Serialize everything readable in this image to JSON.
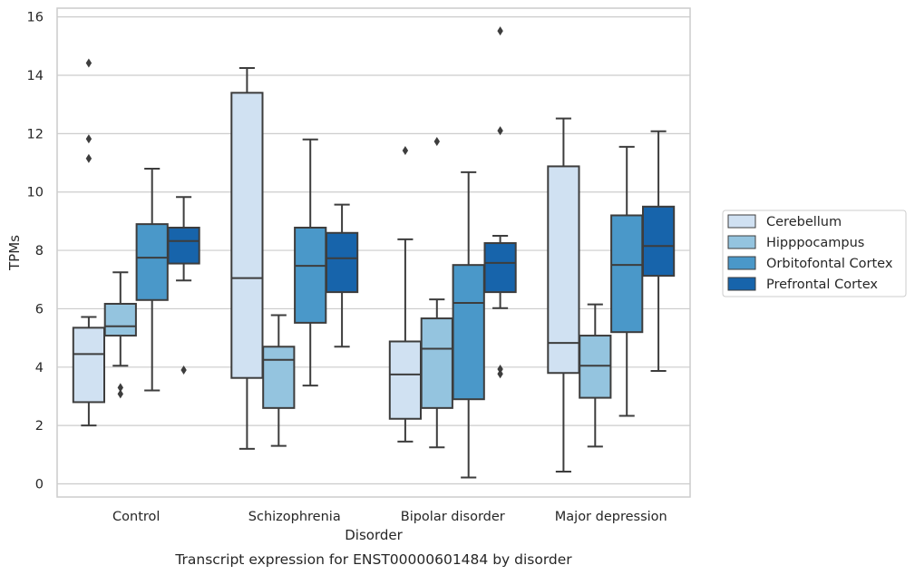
{
  "chart_data": {
    "type": "box",
    "caption": "Transcript expression for ENST00000601484 by disorder",
    "xlabel": "Disorder",
    "ylabel": "TPMs",
    "ylim": [
      -0.45,
      16.3
    ],
    "yticks": [
      0,
      2,
      4,
      6,
      8,
      10,
      12,
      14,
      16
    ],
    "grid": "horizontal",
    "legend_position": "right",
    "categories": [
      "Control",
      "Schizophrenia",
      "Bipolar disorder",
      "Major depression"
    ],
    "series": [
      {
        "name": "Cerebellum",
        "color": "#d0e1f2",
        "boxes": [
          {
            "whisker_low": 2.0,
            "q1": 2.8,
            "median": 4.45,
            "q3": 5.35,
            "whisker_high": 5.72,
            "outliers": [
              11.15,
              11.82,
              14.42
            ]
          },
          {
            "whisker_low": 1.2,
            "q1": 3.63,
            "median": 7.05,
            "q3": 13.4,
            "whisker_high": 14.25,
            "outliers": []
          },
          {
            "whisker_low": 1.45,
            "q1": 2.23,
            "median": 3.75,
            "q3": 4.88,
            "whisker_high": 8.38,
            "outliers": [
              11.42
            ]
          },
          {
            "whisker_low": 0.42,
            "q1": 3.8,
            "median": 4.83,
            "q3": 10.88,
            "whisker_high": 12.52,
            "outliers": []
          }
        ]
      },
      {
        "name": "Hipppocampus",
        "color": "#94c4df",
        "boxes": [
          {
            "whisker_low": 4.05,
            "q1": 5.08,
            "median": 5.4,
            "q3": 6.17,
            "whisker_high": 7.25,
            "outliers": [
              3.08,
              3.3
            ]
          },
          {
            "whisker_low": 1.3,
            "q1": 2.6,
            "median": 4.25,
            "q3": 4.7,
            "whisker_high": 5.78,
            "outliers": []
          },
          {
            "whisker_low": 1.25,
            "q1": 2.6,
            "median": 4.63,
            "q3": 5.67,
            "whisker_high": 6.32,
            "outliers": [
              11.73
            ]
          },
          {
            "whisker_low": 1.28,
            "q1": 2.95,
            "median": 4.05,
            "q3": 5.08,
            "whisker_high": 6.15,
            "outliers": []
          }
        ]
      },
      {
        "name": "Orbitofontal Cortex",
        "color": "#4a98c9",
        "boxes": [
          {
            "whisker_low": 3.2,
            "q1": 6.3,
            "median": 7.75,
            "q3": 8.9,
            "whisker_high": 10.8,
            "outliers": []
          },
          {
            "whisker_low": 3.37,
            "q1": 5.52,
            "median": 7.47,
            "q3": 8.78,
            "whisker_high": 11.8,
            "outliers": []
          },
          {
            "whisker_low": 0.22,
            "q1": 2.9,
            "median": 6.2,
            "q3": 7.5,
            "whisker_high": 10.68,
            "outliers": []
          },
          {
            "whisker_low": 2.33,
            "q1": 5.2,
            "median": 7.5,
            "q3": 9.2,
            "whisker_high": 11.55,
            "outliers": []
          }
        ]
      },
      {
        "name": "Prefrontal Cortex",
        "color": "#1764ab",
        "boxes": [
          {
            "whisker_low": 6.97,
            "q1": 7.55,
            "median": 8.32,
            "q3": 8.78,
            "whisker_high": 9.83,
            "outliers": [
              3.9
            ]
          },
          {
            "whisker_low": 4.7,
            "q1": 6.57,
            "median": 7.73,
            "q3": 8.6,
            "whisker_high": 9.57,
            "outliers": []
          },
          {
            "whisker_low": 6.02,
            "q1": 6.57,
            "median": 7.57,
            "q3": 8.25,
            "whisker_high": 8.5,
            "outliers": [
              3.77,
              3.93,
              12.1,
              15.52
            ]
          },
          {
            "whisker_low": 3.87,
            "q1": 7.13,
            "median": 8.15,
            "q3": 9.5,
            "whisker_high": 12.08,
            "outliers": []
          }
        ]
      }
    ]
  }
}
